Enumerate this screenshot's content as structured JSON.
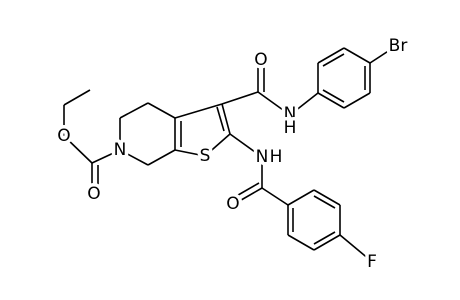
{
  "atoms": [
    {
      "label": "O"
    },
    {
      "label": "O"
    },
    {
      "label": "N"
    },
    {
      "label": "S"
    },
    {
      "label": "O"
    },
    {
      "label": "N"
    },
    {
      "label": "H"
    },
    {
      "label": "Br"
    },
    {
      "label": "N"
    },
    {
      "label": "H"
    },
    {
      "label": "O"
    },
    {
      "label": "F"
    }
  ]
}
